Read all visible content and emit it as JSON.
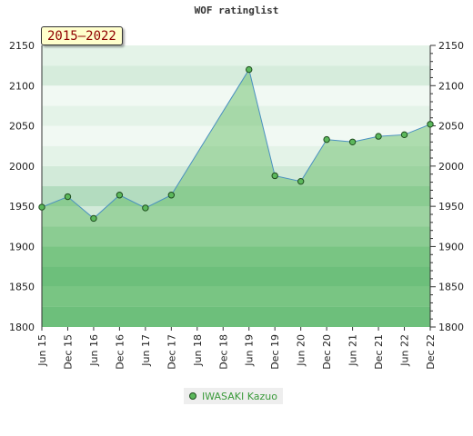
{
  "chart_data": {
    "type": "area",
    "title": "WOF ratinglist",
    "badge": "2015–2022",
    "categories": [
      "Jun 15",
      "Dec 15",
      "Jun 16",
      "Dec 16",
      "Jun 17",
      "Dec 17",
      "Jun 18",
      "Dec 18",
      "Jun 19",
      "Dec 19",
      "Jun 20",
      "Dec 20",
      "Jun 21",
      "Dec 21",
      "Jun 22",
      "Dec 22"
    ],
    "series": [
      {
        "name": "IWASAKI Kazuo",
        "color": "#5cb85c",
        "values": [
          1949,
          1962,
          1935,
          1964,
          1948,
          1964,
          null,
          null,
          2120,
          1988,
          1981,
          2033,
          2030,
          2037,
          2039,
          2052
        ]
      }
    ],
    "ylim": [
      1800,
      2150
    ],
    "yticks": [
      1800,
      1850,
      1900,
      1950,
      2000,
      2050,
      2100,
      2150
    ],
    "xlabel": "",
    "ylabel": "",
    "grid": true,
    "legend_position": "bottom-center",
    "band_colors": [
      "#7cc595",
      "#93cfa5",
      "#7cc595",
      "#93cfa5",
      "#b3dcbf",
      "#d2ead9",
      "#b3dcbf",
      "#d2ead9",
      "#e4f3e8",
      "#f1f9f3",
      "#e4f3e8",
      "#f1f9f3",
      "#d6ecdc",
      "#e4f3e8"
    ]
  }
}
